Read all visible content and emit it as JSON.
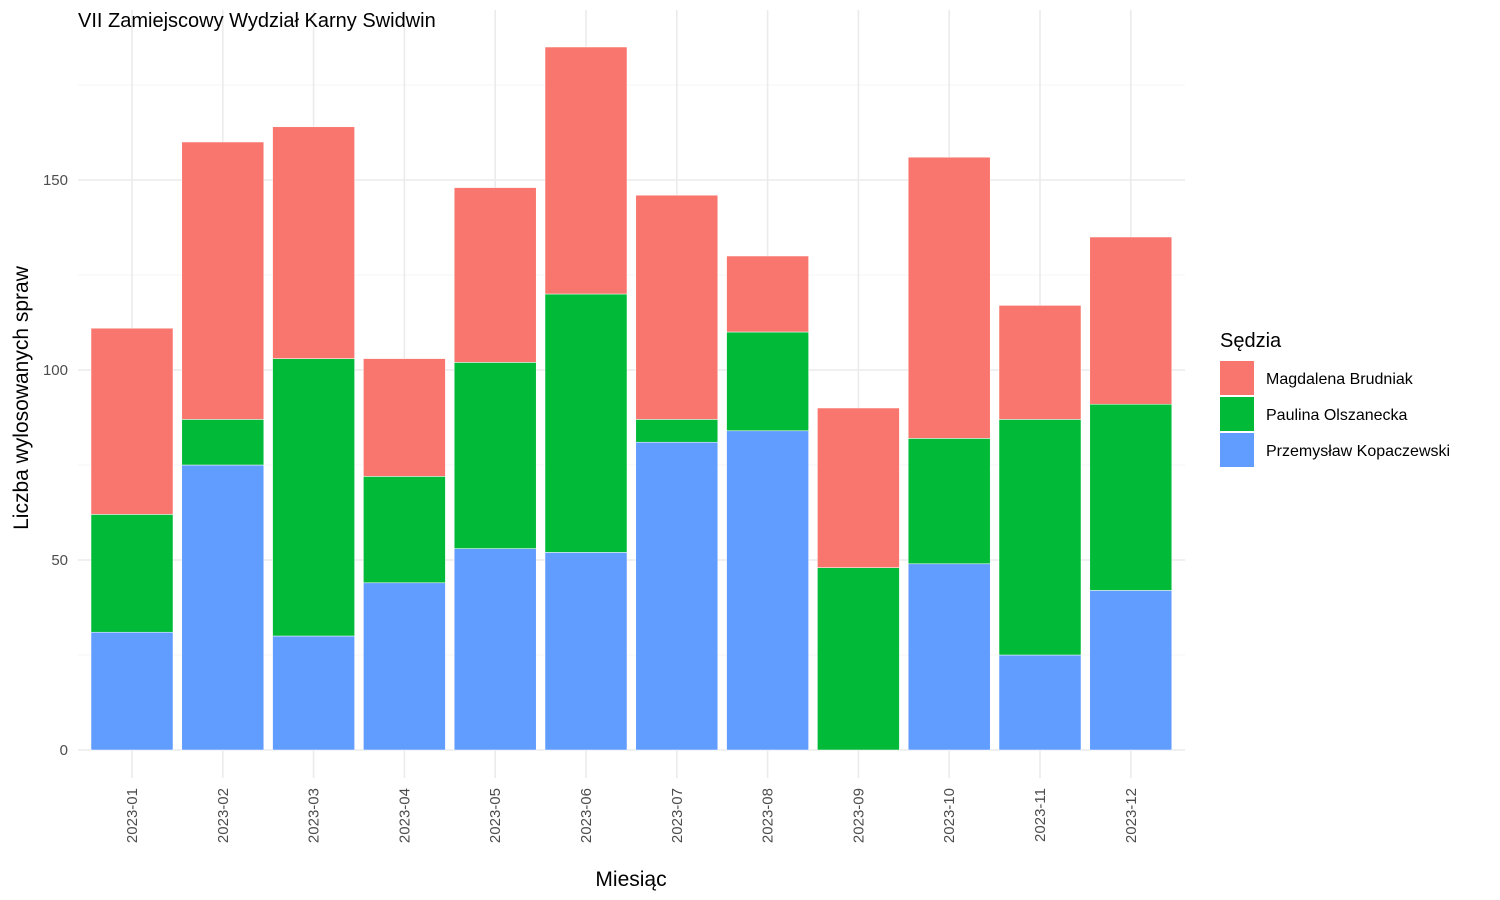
{
  "chart_data": {
    "type": "bar",
    "stacked": true,
    "title": "VII Zamiejscowy Wydział Karny Swidwin",
    "xlabel": "Miesiąc",
    "ylabel": "Liczba wylosowanych spraw",
    "categories": [
      "2023-01",
      "2023-02",
      "2023-03",
      "2023-04",
      "2023-05",
      "2023-06",
      "2023-07",
      "2023-08",
      "2023-09",
      "2023-10",
      "2023-11",
      "2023-12"
    ],
    "y_ticks": [
      0,
      50,
      100,
      150
    ],
    "ylim": [
      0,
      194
    ],
    "grid": true,
    "legend": {
      "title": "Sędzia",
      "placement": "right"
    },
    "series": [
      {
        "name": "Przemysław Kopaczewski",
        "color": "#619CFF",
        "values": [
          31,
          75,
          30,
          44,
          53,
          52,
          81,
          84,
          0,
          49,
          25,
          42
        ]
      },
      {
        "name": "Paulina Olszanecka",
        "color": "#00BA38",
        "values": [
          31,
          12,
          73,
          28,
          49,
          68,
          6,
          26,
          48,
          33,
          62,
          49
        ]
      },
      {
        "name": "Magdalena Brudniak",
        "color": "#F8766D",
        "values": [
          49,
          73,
          61,
          31,
          46,
          65,
          59,
          20,
          42,
          74,
          30,
          44
        ]
      }
    ],
    "legend_order": [
      "Magdalena Brudniak",
      "Paulina Olszanecka",
      "Przemysław Kopaczewski"
    ]
  }
}
